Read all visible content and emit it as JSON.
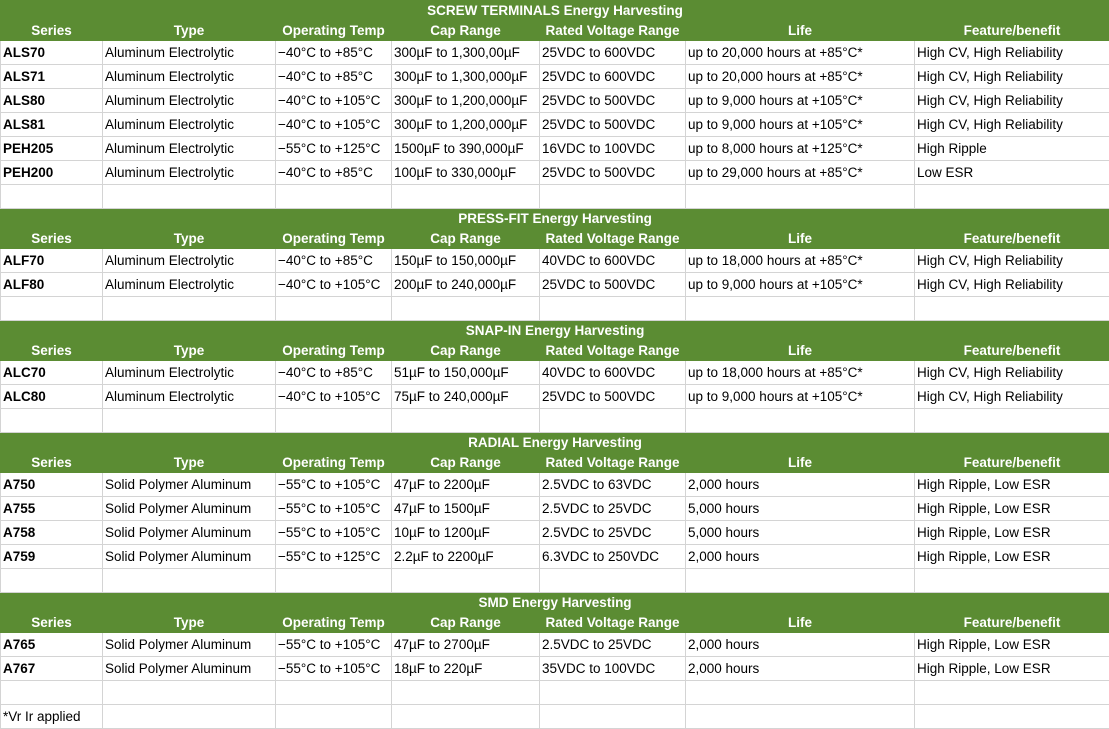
{
  "sections": [
    {
      "title": "SCREW TERMINALS Energy Harvesting",
      "header": [
        "Series",
        "Type",
        "Operating Temp",
        "Cap Range",
        "Rated Voltage Range",
        "Life",
        "Feature/benefit"
      ],
      "rows": [
        [
          "ALS70",
          "Aluminum Electrolytic",
          "−40°C to +85°C",
          "300µF to 1,300,00µF",
          "25VDC to 600VDC",
          "up to 20,000 hours at +85°C*",
          "High CV, High Reliability"
        ],
        [
          "ALS71",
          "Aluminum Electrolytic",
          "−40°C to +85°C",
          "300µF to 1,300,000µF",
          "25VDC to 600VDC",
          "up to 20,000 hours at +85°C*",
          "High CV, High Reliability"
        ],
        [
          "ALS80",
          "Aluminum Electrolytic",
          "−40°C to +105°C",
          "300µF to 1,200,000µF",
          "25VDC to 500VDC",
          "up to 9,000 hours at +105°C*",
          "High CV, High Reliability"
        ],
        [
          "ALS81",
          "Aluminum Electrolytic",
          "−40°C to +105°C",
          "300µF to 1,200,000µF",
          "25VDC to 500VDC",
          "up to 9,000 hours at +105°C*",
          "High CV, High Reliability"
        ],
        [
          "PEH205",
          "Aluminum Electrolytic",
          "−55°C to +125°C",
          "1500µF to 390,000µF",
          "16VDC to 100VDC",
          "up to 8,000 hours at +125°C*",
          "High Ripple"
        ],
        [
          "PEH200",
          "Aluminum Electrolytic",
          "−40°C to +85°C",
          "100µF to 330,000µF",
          "25VDC to 500VDC",
          "up to 29,000 hours at +85°C*",
          "Low ESR"
        ]
      ]
    },
    {
      "title": "PRESS-FIT Energy Harvesting",
      "header": [
        "Series",
        "Type",
        "Operating Temp",
        "Cap Range",
        "Rated Voltage Range",
        "Life",
        "Feature/benefit"
      ],
      "rows": [
        [
          "ALF70",
          "Aluminum Electrolytic",
          "−40°C to +85°C",
          "150µF to 150,000µF",
          "40VDC to 600VDC",
          "up to 18,000 hours at +85°C*",
          "High CV, High Reliability"
        ],
        [
          "ALF80",
          "Aluminum Electrolytic",
          "−40°C to +105°C",
          "200µF to 240,000µF",
          "25VDC to 500VDC",
          "up to 9,000 hours at +105°C*",
          "High CV, High Reliability"
        ]
      ]
    },
    {
      "title": "SNAP-IN Energy Harvesting",
      "header": [
        "Series",
        "Type",
        "Operating Temp",
        "Cap Range",
        "Rated Voltage Range",
        "Life",
        "Feature/benefit"
      ],
      "rows": [
        [
          "ALC70",
          "Aluminum Electrolytic",
          "−40°C to +85°C",
          "51µF to 150,000µF",
          "40VDC to 600VDC",
          "up to 18,000 hours at +85°C*",
          "High CV, High Reliability"
        ],
        [
          "ALC80",
          "Aluminum Electrolytic",
          "−40°C to +105°C",
          "75µF to 240,000µF",
          "25VDC to 500VDC",
          "up to 9,000 hours at +105°C*",
          "High CV, High Reliability"
        ]
      ]
    },
    {
      "title": "RADIAL Energy Harvesting",
      "header": [
        "Series",
        "Type",
        "Operating Temp",
        "Cap Range",
        "Rated Voltage Range",
        "Life",
        "Feature/benefit"
      ],
      "rows": [
        [
          "A750",
          "Solid Polymer Aluminum",
          "−55°C to +105°C",
          "47µF to 2200µF",
          "2.5VDC to 63VDC",
          "2,000 hours",
          "High Ripple, Low ESR"
        ],
        [
          "A755",
          "Solid Polymer Aluminum",
          "−55°C to +105°C",
          "47µF to 1500µF",
          "2.5VDC to 25VDC",
          "5,000 hours",
          "High Ripple, Low ESR"
        ],
        [
          "A758",
          "Solid Polymer Aluminum",
          "−55°C to +105°C",
          "10µF to 1200µF",
          "2.5VDC to 25VDC",
          "5,000 hours",
          "High Ripple, Low ESR"
        ],
        [
          "A759",
          "Solid Polymer Aluminum",
          "−55°C to +125°C",
          "2.2µF to 2200µF",
          "6.3VDC to 250VDC",
          "2,000 hours",
          "High Ripple, Low ESR"
        ]
      ]
    },
    {
      "title": "SMD Energy Harvesting",
      "header": [
        "Series",
        "Type",
        "Operating Temp",
        "Cap Range",
        "Rated Voltage Range",
        "Life",
        "Feature/benefit"
      ],
      "rows": [
        [
          "A765",
          "Solid Polymer Aluminum",
          "−55°C to +105°C",
          "47µF to 2700µF",
          "2.5VDC to 25VDC",
          "2,000 hours",
          "High Ripple, Low ESR"
        ],
        [
          "A767",
          "Solid Polymer Aluminum",
          "−55°C to +105°C",
          "18µF to 220µF",
          "35VDC to 100VDC",
          "2,000 hours",
          "High Ripple, Low ESR"
        ]
      ]
    }
  ],
  "footnote": "*Vr Ir applied"
}
